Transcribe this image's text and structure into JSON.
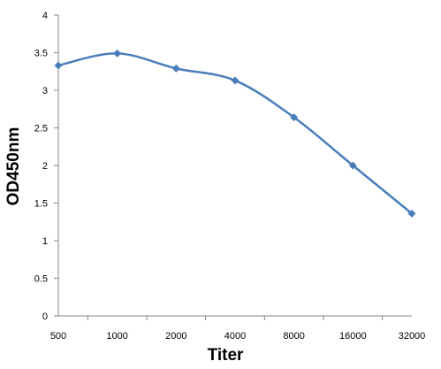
{
  "chart_data": {
    "type": "line",
    "title": "",
    "xlabel": "Titer",
    "ylabel": "OD450nm",
    "categories": [
      "500",
      "1000",
      "2000",
      "4000",
      "8000",
      "16000",
      "32000"
    ],
    "series": [
      {
        "values": [
          3.33,
          3.49,
          3.29,
          3.13,
          2.64,
          2.0,
          1.36
        ],
        "color": "#4a7ebb",
        "marker": "diamond",
        "smooth": true
      }
    ],
    "ylim": [
      0,
      4
    ],
    "yticks": [
      "0",
      "0.5",
      "1",
      "1.5",
      "2",
      "2.5",
      "3",
      "3.5",
      "4"
    ],
    "grid": false,
    "legend": "none"
  }
}
